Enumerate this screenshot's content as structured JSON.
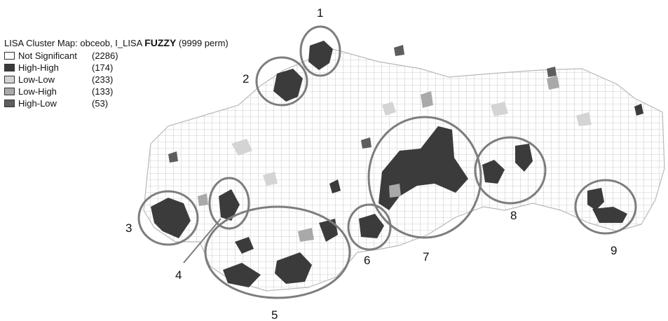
{
  "legend": {
    "title_prefix": "LISA Cluster Map: obceob, I_LISA",
    "title_method": "FUZZY",
    "title_suffix": "(9999 perm)",
    "items": [
      {
        "label": "Not Significant",
        "count": "(2286)",
        "color": "#ffffff"
      },
      {
        "label": "High-High",
        "count": "(174)",
        "color": "#3b3b3b"
      },
      {
        "label": "Low-Low",
        "count": "(233)",
        "color": "#d4d4d4"
      },
      {
        "label": "Low-High",
        "count": "(133)",
        "color": "#a9a9a9"
      },
      {
        "label": "High-Low",
        "count": "(53)",
        "color": "#5e5e5e"
      }
    ]
  },
  "clusters": [
    "1",
    "2",
    "3",
    "4",
    "5",
    "6",
    "7",
    "8",
    "9"
  ],
  "colors": {
    "boundary": "#b8b8b8",
    "circle": "#7d7d7d"
  }
}
